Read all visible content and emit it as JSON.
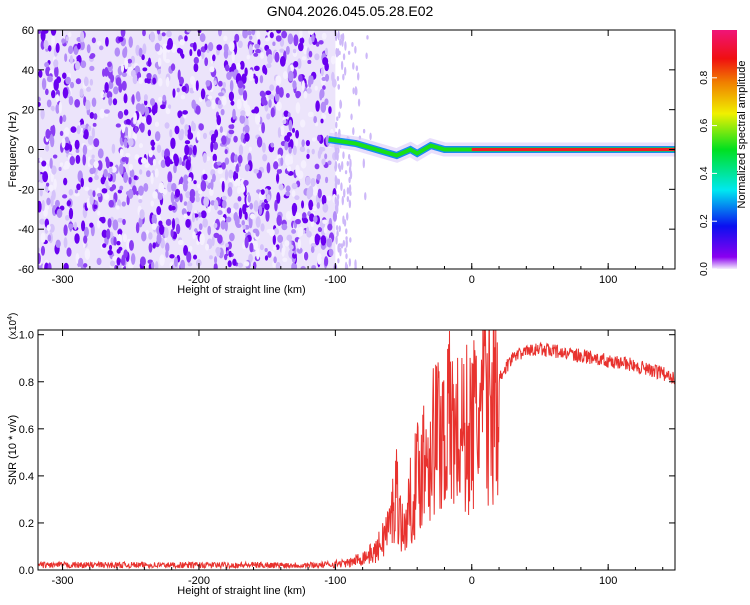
{
  "title": "GN04.2026.045.05.28.E02",
  "chart_data": [
    {
      "type": "heatmap",
      "xlabel": "Height of straight line (km)",
      "ylabel": "Frequency (Hz)",
      "xlim": [
        -318,
        149
      ],
      "ylim": [
        -60,
        60
      ],
      "xticks": [
        "-300",
        "-200",
        "-100",
        "0",
        "100"
      ],
      "yticks": [
        "-60",
        "-40",
        "-20",
        "0",
        "20",
        "40",
        "60"
      ],
      "noise_region_x": [
        -318,
        -100
      ],
      "ridge": {
        "x": [
          -105,
          -95,
          -85,
          -75,
          -65,
          -55,
          -45,
          -40,
          -30,
          -20,
          -10,
          0,
          50,
          100,
          149
        ],
        "y": [
          5,
          4,
          3,
          1,
          -1,
          -3,
          0,
          -2,
          2,
          0,
          0,
          0,
          0,
          0,
          0
        ]
      },
      "colorbar": {
        "label": "Normalized spectral amplitude",
        "ticks": [
          "0.0",
          "0.2",
          "0.4",
          "0.6",
          "0.8"
        ],
        "range": [
          0,
          1
        ]
      }
    },
    {
      "type": "line",
      "xlabel": "Height of straight line (km)",
      "ylabel": "SNR (10 * v/v)",
      "yscale_label": "(x10",
      "yscale_exp": "4",
      "xlim": [
        -318,
        149
      ],
      "ylim": [
        0,
        1.02
      ],
      "xticks": [
        "-300",
        "-200",
        "-100",
        "0",
        "100"
      ],
      "yticks": [
        "0.0",
        "0.2",
        "0.4",
        "0.6",
        "0.8",
        "1.0"
      ],
      "series": [
        {
          "name": "SNR",
          "color": "#e8322e",
          "x": [
            -318,
            -200,
            -110,
            -90,
            -70,
            -60,
            -55,
            -50,
            -45,
            -40,
            -35,
            -30,
            -25,
            -20,
            -15,
            -10,
            -5,
            0,
            10,
            20,
            30,
            40,
            50,
            60,
            80,
            100,
            120,
            149
          ],
          "y": [
            0.02,
            0.02,
            0.02,
            0.03,
            0.08,
            0.2,
            0.35,
            0.15,
            0.3,
            0.4,
            0.5,
            0.55,
            0.6,
            0.62,
            0.65,
            0.58,
            0.6,
            0.62,
            0.72,
            0.85,
            0.93,
            0.97,
            0.97,
            0.96,
            0.94,
            0.92,
            0.9,
            0.85
          ]
        }
      ]
    }
  ]
}
